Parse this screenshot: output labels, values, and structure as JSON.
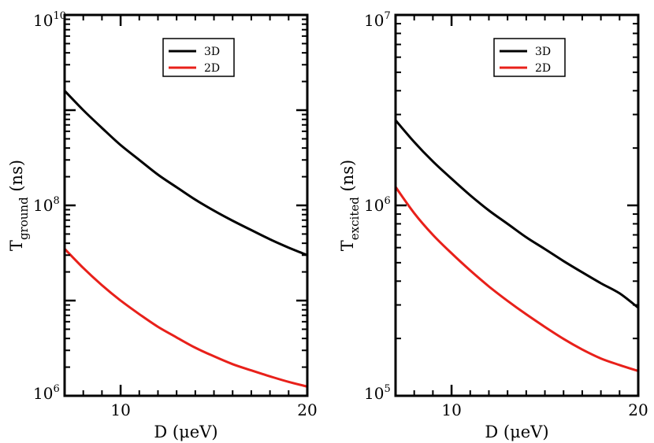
{
  "chart_data": [
    {
      "type": "line",
      "title": "",
      "xlabel": "D (μeV)",
      "ylabel_main": "T",
      "ylabel_sub": "ground",
      "ylabel_unit": " (ns)",
      "xscale": "linear",
      "yscale": "log",
      "xlim": [
        7,
        20
      ],
      "ylim": [
        1000000,
        10000000000
      ],
      "x_ticks": [
        {
          "value": 10,
          "label": "10"
        },
        {
          "value": 20,
          "label": "20"
        }
      ],
      "y_ticks": [
        {
          "value": 1000000,
          "base": "10",
          "exp": "6"
        },
        {
          "value": 100000000,
          "base": "10",
          "exp": "8"
        },
        {
          "value": 10000000000,
          "base": "10",
          "exp": "10"
        }
      ],
      "legend_position": "top-center",
      "series": [
        {
          "name": "3D",
          "color": "#000000",
          "x": [
            7,
            8,
            9,
            10,
            11,
            12,
            13,
            14,
            15,
            16,
            17,
            18,
            19,
            20
          ],
          "values": [
            1600000000,
            1000000000,
            650000000,
            430000000,
            300000000,
            210000000,
            155000000,
            115000000,
            88000000,
            69000000,
            55000000,
            44000000,
            36000000,
            30000000
          ]
        },
        {
          "name": "2D",
          "color": "#e8201a",
          "x": [
            7,
            8,
            9,
            10,
            11,
            12,
            13,
            14,
            15,
            16,
            17,
            18,
            19,
            20
          ],
          "values": [
            35000000,
            22000000,
            14500000,
            10000000,
            7200000,
            5300000,
            4100000,
            3200000,
            2600000,
            2150000,
            1850000,
            1600000,
            1400000,
            1250000
          ]
        }
      ]
    },
    {
      "type": "line",
      "title": "",
      "xlabel": "D (μeV)",
      "ylabel_main": "T",
      "ylabel_sub": "excited",
      "ylabel_unit": " (ns)",
      "xscale": "linear",
      "yscale": "log",
      "xlim": [
        7,
        20
      ],
      "ylim": [
        100000,
        10000000
      ],
      "x_ticks": [
        {
          "value": 10,
          "label": "10"
        },
        {
          "value": 20,
          "label": "20"
        }
      ],
      "y_ticks": [
        {
          "value": 100000,
          "base": "10",
          "exp": "5"
        },
        {
          "value": 1000000,
          "base": "10",
          "exp": "6"
        },
        {
          "value": 10000000,
          "base": "10",
          "exp": "7"
        }
      ],
      "legend_position": "top-center",
      "series": [
        {
          "name": "3D",
          "color": "#000000",
          "x": [
            7,
            8,
            9,
            10,
            11,
            12,
            13,
            14,
            15,
            16,
            17,
            18,
            19,
            20
          ],
          "values": [
            2800000,
            2150000,
            1700000,
            1380000,
            1130000,
            940000,
            800000,
            680000,
            590000,
            510000,
            445000,
            390000,
            345000,
            290000
          ]
        },
        {
          "name": "2D",
          "color": "#e8201a",
          "x": [
            7,
            8,
            9,
            10,
            11,
            12,
            13,
            14,
            15,
            16,
            17,
            18,
            19,
            20
          ],
          "values": [
            1250000,
            910000,
            700000,
            560000,
            455000,
            375000,
            315000,
            268000,
            230000,
            199000,
            175000,
            157000,
            145000,
            135000
          ]
        }
      ]
    }
  ]
}
